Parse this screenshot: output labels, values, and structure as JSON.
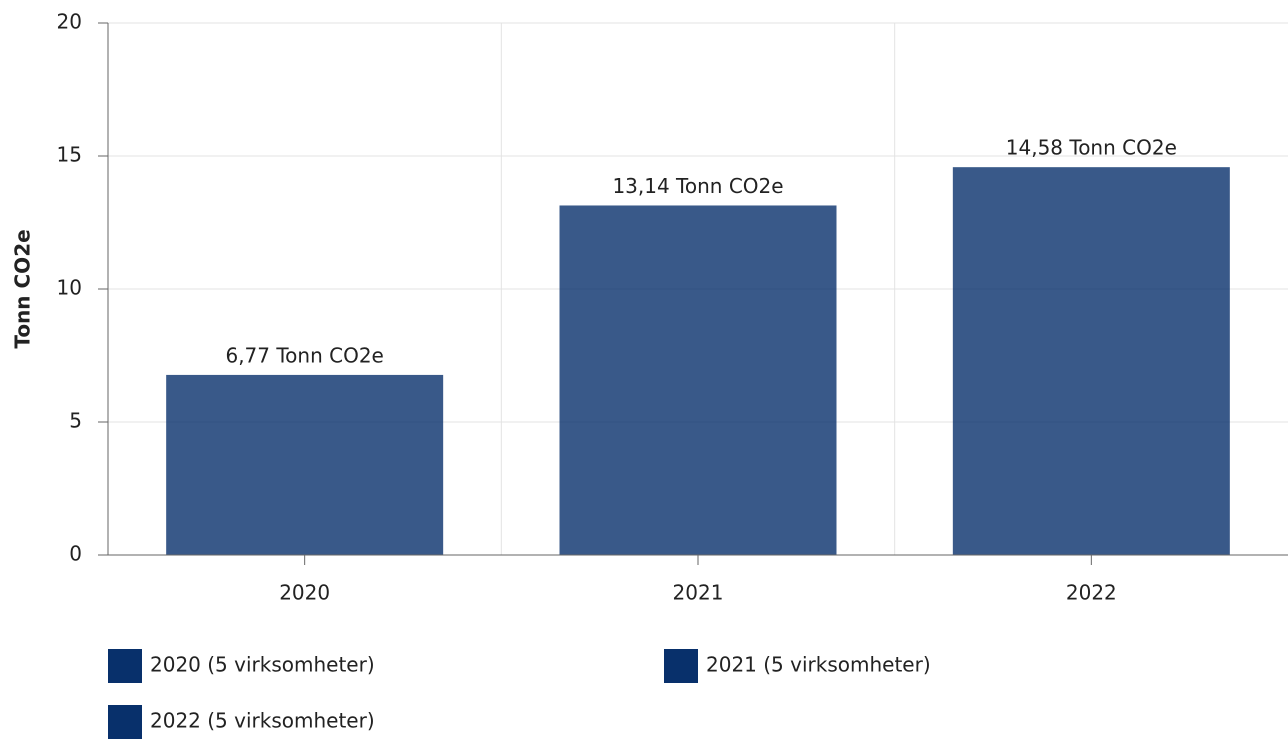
{
  "chart_data": {
    "type": "bar",
    "y_label": "Tonn CO2e",
    "categories": [
      "2020",
      "2021",
      "2022"
    ],
    "series": [
      {
        "name": "2020 (5 virksomheter)",
        "color": "#08306b",
        "values": [
          6.77,
          null,
          null
        ],
        "value_labels": [
          "6,77 Tonn CO2e",
          null,
          null
        ]
      },
      {
        "name": "2021 (5 virksomheter)",
        "color": "#08306b",
        "values": [
          null,
          13.14,
          null
        ],
        "value_labels": [
          null,
          "13,14 Tonn CO2e",
          null
        ]
      },
      {
        "name": "2022 (5 virksomheter)",
        "color": "#08306b",
        "values": [
          null,
          null,
          14.58
        ],
        "value_labels": [
          null,
          null,
          "14,58 Tonn CO2e"
        ]
      }
    ],
    "ylim": [
      0,
      20
    ],
    "yticks": [
      0,
      5,
      10,
      15,
      20
    ],
    "grid": true
  }
}
